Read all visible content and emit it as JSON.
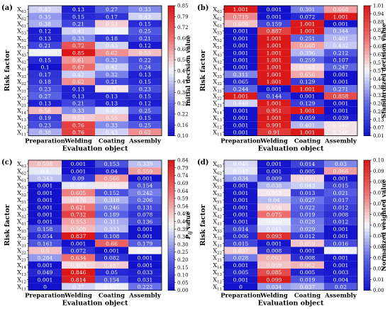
{
  "chart_data": [
    {
      "type": "heatmap",
      "panel_label": "(a)",
      "xlabel": "Evaluation object",
      "ylabel": "Risk factor",
      "colorbar_label": "Initial decision value",
      "categories": [
        "Preparation",
        "Welding",
        "Coating",
        "Assembly"
      ],
      "rows": [
        "X63",
        "X62",
        "X61",
        "X53",
        "X52",
        "X51",
        "X43",
        "X42",
        "X41",
        "X33",
        "X32",
        "X31",
        "X22",
        "X21",
        "X14",
        "X13",
        "X12",
        "X11"
      ],
      "values": [
        [
          0.43,
          0.13,
          0.27,
          0.33
        ],
        [
          0.35,
          0.15,
          0.17,
          0.43
        ],
        [
          0.38,
          0.21,
          0.53,
          0.15
        ],
        [
          0.12,
          0.43,
          0.47,
          0.25
        ],
        [
          0.13,
          0.33,
          0.18,
          0.21
        ],
        [
          0.21,
          0.72,
          0.43,
          0.12
        ],
        [
          0.47,
          0.85,
          0.62,
          0.55
        ],
        [
          0.15,
          0.61,
          0.32,
          0.22
        ],
        [
          0.1,
          0.67,
          0.42,
          0.24
        ],
        [
          0.17,
          0.42,
          0.32,
          0.13
        ],
        [
          0.18,
          0.62,
          0.21,
          0.15
        ],
        [
          0.23,
          0.13,
          0.5,
          0.23
        ],
        [
          0.27,
          0.13,
          0.13,
          0.15
        ],
        [
          0.13,
          0.21,
          0.13,
          0.12
        ],
        [
          0.56,
          0.33,
          0.45,
          0.25
        ],
        [
          0.19,
          0.53,
          0.55,
          0.15
        ],
        [
          0.23,
          0.76,
          0.33,
          0.25
        ],
        [
          0.38,
          0.76,
          0.43,
          0.62
        ]
      ],
      "ticks": [
        "0.85",
        "0.79",
        "0.72",
        "0.66",
        "0.60",
        "0.54",
        "0.47",
        "0.41",
        "0.35",
        "0.29",
        "0.22",
        "0.16",
        "0.10"
      ],
      "range": [
        0.1,
        0.85
      ]
    },
    {
      "type": "heatmap",
      "panel_label": "(b)",
      "xlabel": "Evaluation object",
      "ylabel": "Risk factor",
      "colorbar_label": "Standardized decision value",
      "categories": [
        "Preparation",
        "Welding",
        "Coating",
        "Assembly"
      ],
      "rows": [
        "X63",
        "X62",
        "X61",
        "X53",
        "X52",
        "X51",
        "X43",
        "X42",
        "X41",
        "X33",
        "X32",
        "X31",
        "X22",
        "X21",
        "X14",
        "X13",
        "X12",
        "X11"
      ],
      "values": [
        [
          1.001,
          0.001,
          0.301,
          0.668
        ],
        [
          0.715,
          0.001,
          0.072,
          1.001
        ],
        [
          0.606,
          0.159,
          1.001,
          0.001
        ],
        [
          0.001,
          0.887,
          1.001,
          0.344
        ],
        [
          0.001,
          1.001,
          0.251,
          0.401
        ],
        [
          0.001,
          1.001,
          0.668,
          0.432
        ],
        [
          0.001,
          1.001,
          0.396,
          0.212
        ],
        [
          0.001,
          1.001,
          0.259,
          0.107
        ],
        [
          0.001,
          1.001,
          0.562,
          0.247
        ],
        [
          0.311,
          1.001,
          0.656,
          0.001
        ],
        [
          0.065,
          1.001,
          0.129,
          0.001
        ],
        [
          0.244,
          0.001,
          1.001,
          0.271
        ],
        [
          1.001,
          0.144,
          0.001,
          0.858
        ],
        [
          0.448,
          1.001,
          0.129,
          0.001
        ],
        [
          0.001,
          0.951,
          1.001,
          0.001
        ],
        [
          0.001,
          1.001,
          0.059,
          0.039
        ],
        [
          0.001,
          0.991,
          0.401,
          0.546
        ],
        [
          0.001,
          0.91,
          1.001,
          0.546
        ]
      ],
      "ticks": [
        "1.01",
        "0.94",
        "0.88",
        "0.82",
        "0.76",
        "0.69",
        "0.63",
        "0.57",
        "0.51",
        "0.44",
        "0.38",
        "0.32",
        "0.26",
        "0.20",
        "0.13",
        "0.07",
        "0.01"
      ],
      "range": [
        0.01,
        1.01
      ]
    },
    {
      "type": "heatmap",
      "panel_label": "(c)",
      "xlabel": "Evaluation object",
      "ylabel": "Risk factor",
      "colorbar_label": "P_ij value",
      "categories": [
        "Preparation",
        "Welding",
        "Coating",
        "Assembly"
      ],
      "rows": [
        "X63",
        "X62",
        "X61",
        "X53",
        "X52",
        "X51",
        "X43",
        "X42",
        "X41",
        "X33",
        "X32",
        "X31",
        "X22",
        "X21",
        "X14",
        "X13",
        "X12",
        "X11"
      ],
      "values": [
        [
          0.508,
          0.001,
          0.153,
          0.339
        ],
        [
          0.4,
          0.001,
          0.04,
          0.559
        ],
        [
          0.343,
          0.09,
          0.566,
          0.001
        ],
        [
          0.001,
          0.397,
          0.448,
          0.154
        ],
        [
          0.001,
          0.605,
          0.152,
          0.242
        ],
        [
          0.001,
          0.476,
          0.318,
          0.206
        ],
        [
          0.001,
          0.621,
          0.246,
          0.131
        ],
        [
          0.001,
          0.732,
          0.189,
          0.078
        ],
        [
          0.001,
          0.553,
          0.311,
          0.136
        ],
        [
          0.158,
          0.508,
          0.333,
          0.001
        ],
        [
          0.054,
          0.837,
          0.108,
          0.001
        ],
        [
          0.161,
          0.001,
          0.66,
          0.179
        ],
        [
          0.5,
          0.072,
          0.001,
          0.428
        ],
        [
          0.284,
          0.634,
          0.082,
          0.001
        ],
        [
          0.001,
          0.463,
          0.487,
          0.001
        ],
        [
          0.049,
          0.846,
          0.05,
          0.033
        ],
        [
          0.001,
          0.814,
          0.154,
          0.031
        ],
        [
          0,
          0.37,
          0.407,
          0.222
        ]
      ],
      "ticks": [
        "0.84",
        "0.79",
        "0.74",
        "0.69",
        "0.64",
        "0.59",
        "0.54",
        "0.49",
        "0.44",
        "0.39",
        "0.34",
        "0.30",
        "0.25",
        "0.20",
        "0.15",
        "0.10",
        "0.05",
        "0.00"
      ],
      "range": [
        0.0,
        0.84
      ]
    },
    {
      "type": "heatmap",
      "panel_label": "(d)",
      "xlabel": "Evaluation object",
      "ylabel": "Risk factor",
      "colorbar_label": "Normalized weighted value",
      "categories": [
        "Preparation",
        "Welding",
        "Coating",
        "Assembly"
      ],
      "rows": [
        "X63",
        "X62",
        "X61",
        "X53",
        "X52",
        "X51",
        "X43",
        "X42",
        "X41",
        "X33",
        "X32",
        "X31",
        "X22",
        "X21",
        "X14",
        "X13",
        "X12",
        "X11"
      ],
      "values": [
        [
          0.045,
          0.001,
          0.014,
          0.03
        ],
        [
          0.047,
          0.001,
          0.005,
          0.066
        ],
        [
          0.034,
          0.009,
          0.056,
          0.001
        ],
        [
          0.001,
          0.038,
          0.043,
          0.015
        ],
        [
          0.001,
          0.053,
          0.013,
          0.021
        ],
        [
          0.001,
          0.04,
          0.027,
          0.017
        ],
        [
          0.001,
          0.056,
          0.022,
          0.012
        ],
        [
          0.001,
          0.075,
          0.019,
          0.008
        ],
        [
          0.001,
          0.049,
          0.028,
          0.012
        ],
        [
          0.014,
          0.045,
          0.029,
          0.001
        ],
        [
          0.006,
          0.093,
          0.012,
          0.001
        ],
        [
          0.015,
          0.001,
          0.059,
          0.016
        ],
        [
          0.057,
          0.008,
          0.001,
          0.049
        ],
        [
          0.028,
          0.063,
          0.008,
          0.001
        ],
        [
          0.001,
          0.059,
          0.062,
          0.001
        ],
        [
          0.005,
          0.085,
          0.005,
          0.003
        ],
        [
          0.001,
          0.099,
          0.019,
          0.004
        ],
        [
          0,
          0.034,
          0.037,
          0.02
        ]
      ],
      "ticks": [
        "0.10",
        "0.09",
        "0.08",
        "0.07",
        "0.07",
        "0.06",
        "0.05",
        "0.04",
        "0.03",
        "0.02",
        "0.02",
        "0.01",
        "0.00"
      ],
      "range": [
        0.0,
        0.1
      ]
    }
  ]
}
